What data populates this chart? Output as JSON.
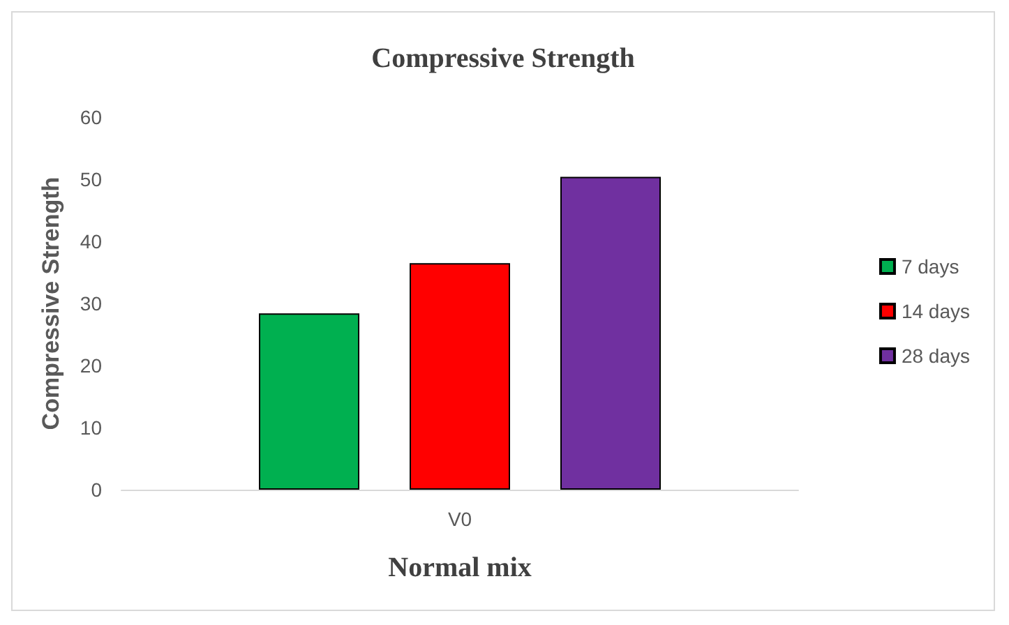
{
  "chart_data": {
    "type": "bar",
    "title": "Compressive Strength",
    "xlabel": "Normal mix",
    "ylabel": "Compressive Strength",
    "categories": [
      "V0"
    ],
    "series": [
      {
        "name": "7 days",
        "color": "#00b050",
        "values": [
          28.4
        ]
      },
      {
        "name": "14 days",
        "color": "#ff0000",
        "values": [
          36.5
        ]
      },
      {
        "name": "28 days",
        "color": "#7030a0",
        "values": [
          50.4
        ]
      }
    ],
    "ylim": [
      0,
      60
    ],
    "yticks": [
      0,
      10,
      20,
      30,
      40,
      50,
      60
    ],
    "grid": false,
    "legend": "right"
  }
}
